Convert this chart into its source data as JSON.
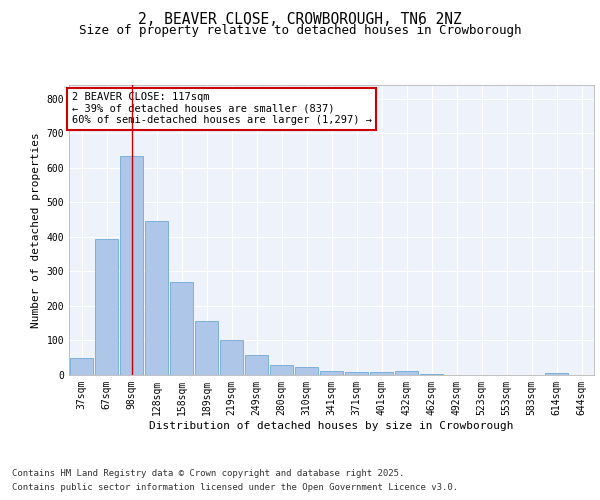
{
  "title": "2, BEAVER CLOSE, CROWBOROUGH, TN6 2NZ",
  "subtitle": "Size of property relative to detached houses in Crowborough",
  "xlabel": "Distribution of detached houses by size in Crowborough",
  "ylabel": "Number of detached properties",
  "categories": [
    "37sqm",
    "67sqm",
    "98sqm",
    "128sqm",
    "158sqm",
    "189sqm",
    "219sqm",
    "249sqm",
    "280sqm",
    "310sqm",
    "341sqm",
    "371sqm",
    "401sqm",
    "432sqm",
    "462sqm",
    "492sqm",
    "523sqm",
    "553sqm",
    "583sqm",
    "614sqm",
    "644sqm"
  ],
  "values": [
    50,
    395,
    635,
    445,
    270,
    155,
    100,
    58,
    30,
    22,
    12,
    10,
    10,
    12,
    2,
    0,
    0,
    0,
    0,
    7,
    0
  ],
  "bar_color": "#aec6e8",
  "bar_edge_color": "#5a9fd4",
  "background_color": "#eef2fa",
  "grid_color": "#ffffff",
  "vline_x": 2,
  "vline_color": "#cc0000",
  "annotation_lines": [
    "2 BEAVER CLOSE: 117sqm",
    "← 39% of detached houses are smaller (837)",
    "60% of semi-detached houses are larger (1,297) →"
  ],
  "annotation_box_color": "#ffffff",
  "annotation_box_edge_color": "#cc0000",
  "footer_line1": "Contains HM Land Registry data © Crown copyright and database right 2025.",
  "footer_line2": "Contains public sector information licensed under the Open Government Licence v3.0.",
  "ylim": [
    0,
    840
  ],
  "title_fontsize": 10.5,
  "subtitle_fontsize": 9,
  "axis_label_fontsize": 8,
  "tick_fontsize": 7,
  "annotation_fontsize": 7.5,
  "footer_fontsize": 6.5
}
